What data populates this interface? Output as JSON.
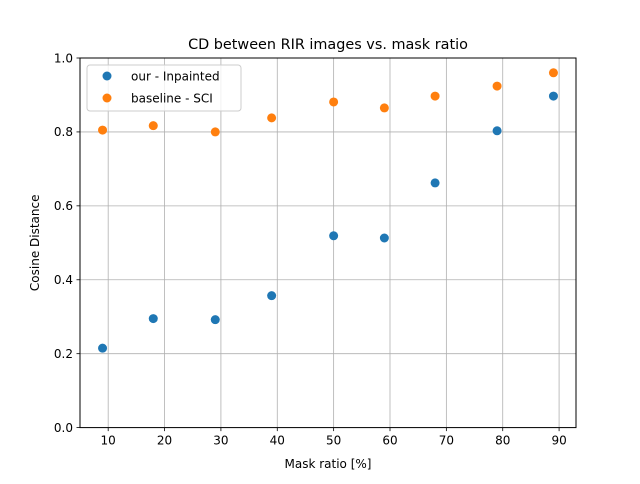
{
  "chart_data": {
    "type": "scatter",
    "title": "CD between RIR images vs. mask ratio",
    "xlabel": "Mask ratio [%]",
    "ylabel": "Cosine Distance",
    "xlim": [
      5.0,
      93.0
    ],
    "ylim": [
      0.0,
      1.0
    ],
    "xticks": [
      10,
      20,
      30,
      40,
      50,
      60,
      70,
      80,
      90
    ],
    "yticks": [
      0.0,
      0.2,
      0.4,
      0.6,
      0.8,
      1.0
    ],
    "xtick_labels": [
      "10",
      "20",
      "30",
      "40",
      "50",
      "60",
      "70",
      "80",
      "90"
    ],
    "ytick_labels": [
      "0.0",
      "0.2",
      "0.4",
      "0.6",
      "0.8",
      "1.0"
    ],
    "grid": true,
    "legend_position": "top-left",
    "series": [
      {
        "name": "our - Inpainted",
        "color": "#1f77b4",
        "x": [
          9,
          18,
          29,
          39,
          50,
          59,
          68,
          79,
          89
        ],
        "y": [
          0.215,
          0.295,
          0.292,
          0.357,
          0.519,
          0.513,
          0.662,
          0.803,
          0.897
        ]
      },
      {
        "name": "baseline - SCI",
        "color": "#ff7f0e",
        "x": [
          9,
          18,
          29,
          39,
          50,
          59,
          68,
          79,
          89
        ],
        "y": [
          0.805,
          0.817,
          0.8,
          0.838,
          0.881,
          0.865,
          0.897,
          0.924,
          0.96
        ]
      }
    ]
  }
}
